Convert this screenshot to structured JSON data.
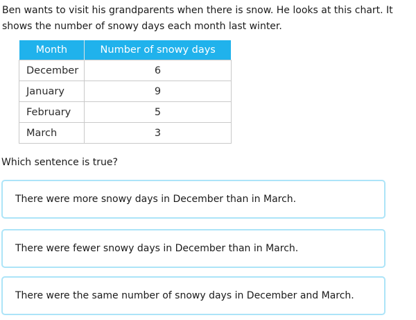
{
  "intro": {
    "text": "Ben wants to visit his grandparents when there is snow. He looks at this chart. It shows the number of snowy days each month last winter."
  },
  "table": {
    "headers": [
      "Month",
      "Number of snowy days"
    ],
    "rows": [
      {
        "month": "December",
        "days": "6"
      },
      {
        "month": "January",
        "days": "9"
      },
      {
        "month": "February",
        "days": "5"
      },
      {
        "month": "March",
        "days": "3"
      }
    ]
  },
  "question": {
    "text": "Which sentence is true?"
  },
  "options": [
    {
      "text": "There were more snowy days in December than in March."
    },
    {
      "text": "There were fewer snowy days in December than in March."
    },
    {
      "text": "There were the same number of snowy days in December and March."
    }
  ],
  "colors": {
    "table_header_bg": "#20b2ec",
    "table_header_text": "#ffffff",
    "table_border": "#c9c9c9",
    "option_border": "#ace4f8",
    "text": "#1a1a1a"
  }
}
